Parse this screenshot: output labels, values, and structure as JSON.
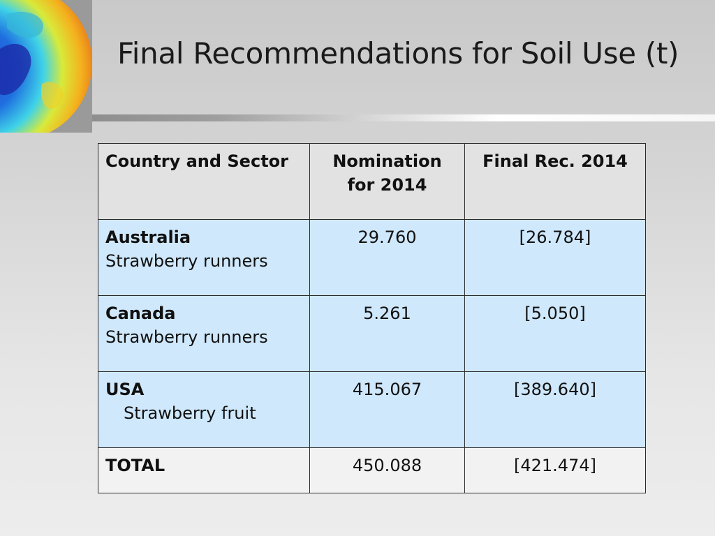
{
  "slide": {
    "title": "Final Recommendations for Soil Use (t)"
  },
  "table": {
    "headers": {
      "country_sector": "Country and Sector",
      "nomination_line1": "Nomination",
      "nomination_line2": "for 2014",
      "final_rec": "Final Rec. 2014"
    },
    "rows": [
      {
        "country": "Australia",
        "sector": "Strawberry runners",
        "nomination": "29.760",
        "final_rec": "[26.784]"
      },
      {
        "country": "Canada",
        "sector": "Strawberry runners",
        "nomination": "5.261",
        "final_rec": "[5.050]"
      },
      {
        "country": "USA",
        "sector": "Strawberry fruit",
        "nomination": "415.067",
        "final_rec": "[389.640]"
      }
    ],
    "total": {
      "label": "TOTAL",
      "nomination": "450.088",
      "final_rec": "[421.474]"
    }
  },
  "colors": {
    "header_bg": "#e2e2e2",
    "row_bg": "#cfe8fb",
    "total_bg": "#f2f2f2"
  }
}
